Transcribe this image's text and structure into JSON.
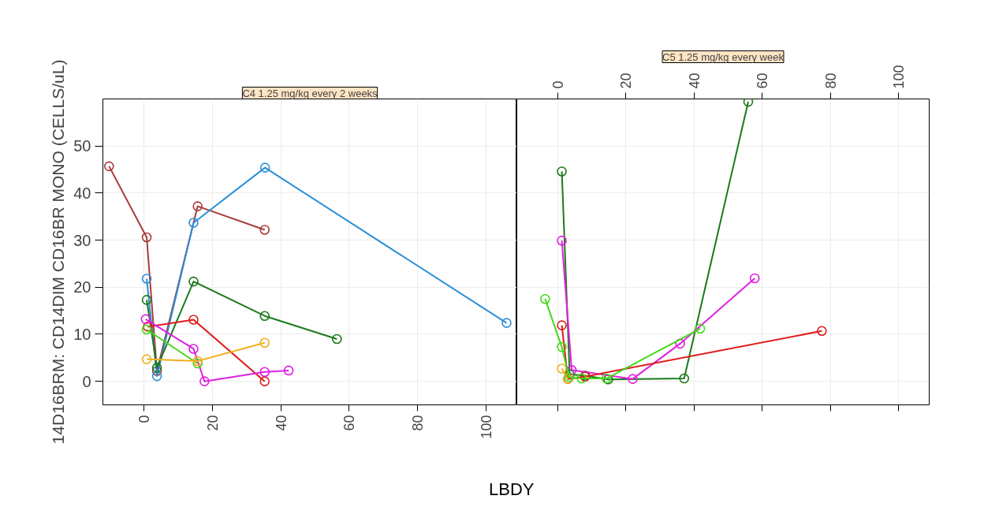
{
  "chart_data": [
    {
      "type": "line",
      "title": "C4 1.25 mg/kg every 2 weeks",
      "xlabel": "LBDY",
      "ylabel": "14D16BRM: CD14DIM CD16BR MONO (CELLS/uL)",
      "xlim": [
        -12,
        109
      ],
      "xticks": [
        0,
        20,
        40,
        60,
        80,
        100
      ],
      "ylim": [
        -5,
        60
      ],
      "yticks": [
        0,
        10,
        20,
        30,
        40,
        50
      ],
      "grid": true,
      "marker": "circle",
      "line_style": "solid",
      "series": [
        {
          "color": "#a83a3a",
          "x": [
            -10.2,
            0.8,
            3.8,
            15.7,
            35.3
          ],
          "values": [
            45.7,
            30.6,
            2.2,
            37.2,
            32.2
          ]
        },
        {
          "color": "#2b8fd8",
          "x": [
            0.8,
            3.8,
            14.5,
            35.4,
            106
          ],
          "values": [
            21.8,
            1.1,
            33.7,
            45.4,
            12.4
          ]
        },
        {
          "color": "#1a7a1a",
          "x": [
            0.8,
            3.8,
            14.5,
            35.3,
            56.4
          ],
          "values": [
            17.3,
            2.9,
            21.2,
            13.9,
            9.0
          ]
        },
        {
          "color": "#e01b1b",
          "x": [
            1.1,
            14.5,
            35.3
          ],
          "values": [
            11.6,
            13.1,
            0
          ]
        },
        {
          "color": "#e020e0",
          "x": [
            0.5,
            14.5,
            17.7,
            35.3,
            42.3
          ],
          "values": [
            13.2,
            6.9,
            0,
            2.0,
            2.3
          ]
        },
        {
          "color": "#44d81a",
          "x": [
            0.8,
            15.7
          ],
          "values": [
            11.0,
            3.8
          ]
        },
        {
          "color": "#f0b020",
          "x": [
            0.8,
            15.7,
            35.3
          ],
          "values": [
            4.7,
            4.3,
            8.2
          ]
        }
      ]
    },
    {
      "type": "line",
      "title": "C5 1.25 mg/kg every week",
      "xlim": [
        -12,
        109
      ],
      "xticks": [
        0,
        20,
        40,
        60,
        80,
        100
      ],
      "ylim": [
        -5,
        60
      ],
      "yticks": [
        0,
        10,
        20,
        30,
        40,
        50
      ],
      "tick_labels": "x",
      "grid": true,
      "marker": "circle",
      "line_style": "solid",
      "series": [
        {
          "color": "#1a7a1a",
          "x": [
            1.2,
            3.5,
            8.1,
            14.8,
            37.1,
            55.9
          ],
          "values": [
            44.6,
            1.5,
            1.2,
            0.4,
            0.6,
            59.4
          ]
        },
        {
          "color": "#e020e0",
          "x": [
            1.2,
            4.1,
            22.0,
            35.9,
            57.8
          ],
          "values": [
            29.9,
            2.4,
            0.5,
            8.0,
            21.9
          ]
        },
        {
          "color": "#e01b1b",
          "x": [
            1.2,
            3.0,
            8.0,
            77.5
          ],
          "values": [
            11.9,
            0.5,
            1.0,
            10.7
          ]
        },
        {
          "color": "#f0b020",
          "x": [
            1.2,
            3.0
          ],
          "values": [
            2.7,
            0.5
          ]
        },
        {
          "color": "#44d81a",
          "x": [
            -3.7,
            1.2,
            3.3,
            7.0,
            14.3,
            41.8
          ],
          "values": [
            17.5,
            7.3,
            0.9,
            0.6,
            0.6,
            11.2
          ]
        }
      ]
    }
  ]
}
